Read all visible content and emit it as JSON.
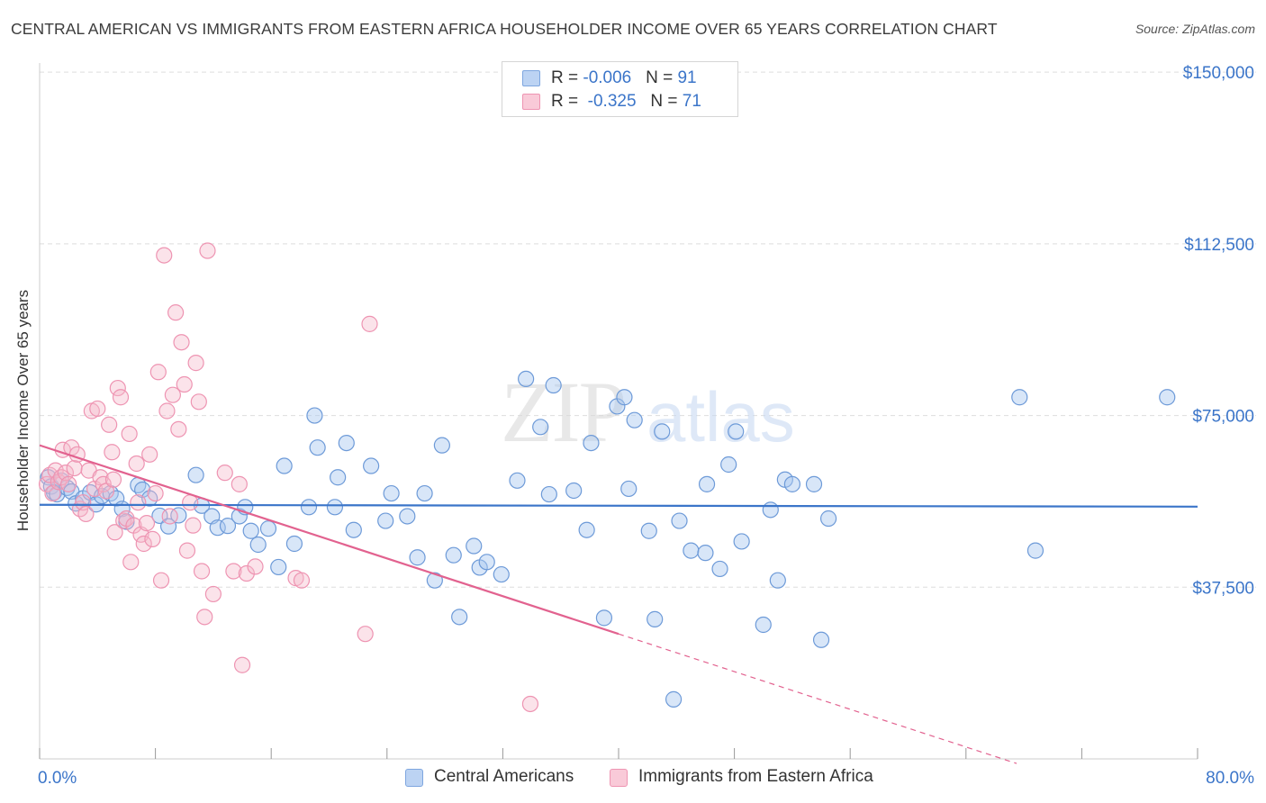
{
  "title": "CENTRAL AMERICAN VS IMMIGRANTS FROM EASTERN AFRICA HOUSEHOLDER INCOME OVER 65 YEARS CORRELATION CHART",
  "source": "Source: ZipAtlas.com",
  "watermark": "ZIPatlas",
  "legend": {
    "row1": {
      "r_label": "R = ",
      "r_value": "-0.006",
      "n_label": "N = ",
      "n_value": "91"
    },
    "row2": {
      "r_label": "R = ",
      "r_value": "-0.325",
      "n_label": "N = ",
      "n_value": "71"
    }
  },
  "colors": {
    "blue": "#3b75c9",
    "blue_fill": "#a9c7f0",
    "pink": "#e2628f",
    "pink_fill": "#f6b8cb",
    "grid": "#dddddd"
  },
  "chart_data": {
    "type": "scatter",
    "title": "CENTRAL AMERICAN VS IMMIGRANTS FROM EASTERN AFRICA HOUSEHOLDER INCOME OVER 65 YEARS CORRELATION CHART",
    "xlabel": "",
    "ylabel": "Householder Income Over 65 years",
    "xlim": [
      0,
      80
    ],
    "ylim": [
      0,
      152000
    ],
    "x_tick_labels": [
      "0.0%",
      "80.0%"
    ],
    "y_ticks": [
      37500,
      75000,
      112500,
      150000
    ],
    "y_tick_labels": [
      "$37,500",
      "$75,000",
      "$112,500",
      "$150,000"
    ],
    "grid": "horizontal dashed",
    "legend_position": "top-center",
    "series": [
      {
        "name": "Central Americans",
        "color": "#3b75c9",
        "r": -0.006,
        "n": 91,
        "trend": {
          "x": [
            0,
            80
          ],
          "y": [
            55500,
            55100
          ]
        },
        "points": [
          [
            0.6,
            61500
          ],
          [
            0.8,
            59500
          ],
          [
            1.0,
            58200
          ],
          [
            1.2,
            57800
          ],
          [
            1.5,
            60800
          ],
          [
            1.9,
            59200
          ],
          [
            2.2,
            58400
          ],
          [
            2.5,
            55800
          ],
          [
            3.0,
            56900
          ],
          [
            3.5,
            58200
          ],
          [
            3.9,
            55600
          ],
          [
            4.3,
            57400
          ],
          [
            4.9,
            58000
          ],
          [
            5.3,
            56900
          ],
          [
            5.7,
            54600
          ],
          [
            6.0,
            51800
          ],
          [
            6.8,
            59800
          ],
          [
            7.1,
            58800
          ],
          [
            7.6,
            56900
          ],
          [
            8.3,
            53100
          ],
          [
            8.9,
            50800
          ],
          [
            9.6,
            53200
          ],
          [
            10.8,
            62000
          ],
          [
            11.2,
            55300
          ],
          [
            11.9,
            53000
          ],
          [
            12.3,
            50500
          ],
          [
            13.0,
            50900
          ],
          [
            13.8,
            53000
          ],
          [
            14.6,
            49800
          ],
          [
            14.2,
            55000
          ],
          [
            15.1,
            46800
          ],
          [
            15.8,
            50300
          ],
          [
            16.9,
            64000
          ],
          [
            16.5,
            41900
          ],
          [
            17.6,
            47000
          ],
          [
            18.6,
            55000
          ],
          [
            19.2,
            68000
          ],
          [
            19.0,
            75000
          ],
          [
            20.6,
            61500
          ],
          [
            20.4,
            55000
          ],
          [
            21.7,
            50000
          ],
          [
            21.2,
            69000
          ],
          [
            22.9,
            64000
          ],
          [
            23.9,
            52000
          ],
          [
            24.3,
            58000
          ],
          [
            25.4,
            53000
          ],
          [
            26.1,
            44000
          ],
          [
            26.6,
            58000
          ],
          [
            27.3,
            39000
          ],
          [
            27.8,
            68500
          ],
          [
            28.6,
            44500
          ],
          [
            29.0,
            31000
          ],
          [
            30.0,
            46500
          ],
          [
            30.4,
            41800
          ],
          [
            30.9,
            43000
          ],
          [
            31.9,
            40300
          ],
          [
            33.0,
            60800
          ],
          [
            33.6,
            83000
          ],
          [
            34.6,
            72500
          ],
          [
            35.2,
            57800
          ],
          [
            35.5,
            81600
          ],
          [
            36.9,
            58600
          ],
          [
            37.8,
            50000
          ],
          [
            38.1,
            69000
          ],
          [
            39.0,
            30800
          ],
          [
            39.9,
            77000
          ],
          [
            40.4,
            79000
          ],
          [
            40.7,
            59000
          ],
          [
            41.1,
            74000
          ],
          [
            42.1,
            49800
          ],
          [
            42.5,
            30500
          ],
          [
            43.0,
            71500
          ],
          [
            44.2,
            52000
          ],
          [
            45.0,
            45500
          ],
          [
            46.1,
            60000
          ],
          [
            46.0,
            45000
          ],
          [
            47.0,
            41500
          ],
          [
            47.6,
            64300
          ],
          [
            48.1,
            71500
          ],
          [
            48.5,
            47500
          ],
          [
            50.0,
            29300
          ],
          [
            50.5,
            54400
          ],
          [
            51.0,
            39000
          ],
          [
            51.5,
            61000
          ],
          [
            43.8,
            13000
          ],
          [
            52.0,
            60000
          ],
          [
            53.5,
            60000
          ],
          [
            54.0,
            26000
          ],
          [
            54.5,
            52500
          ],
          [
            67.7,
            79000
          ],
          [
            68.8,
            45500
          ],
          [
            77.9,
            79000
          ]
        ]
      },
      {
        "name": "Immigrants from Eastern Africa",
        "color": "#e2628f",
        "r": -0.325,
        "n": 71,
        "trend": {
          "x": [
            0,
            40
          ],
          "y": [
            68500,
            27300
          ]
        },
        "trend_dashed": {
          "x": [
            40,
            67.5
          ],
          "y": [
            27300,
            -1000
          ]
        },
        "points": [
          [
            0.5,
            60000
          ],
          [
            0.7,
            62000
          ],
          [
            0.9,
            58000
          ],
          [
            1.1,
            63000
          ],
          [
            1.3,
            60500
          ],
          [
            1.5,
            61500
          ],
          [
            1.6,
            67500
          ],
          [
            1.8,
            62500
          ],
          [
            2.0,
            60000
          ],
          [
            2.2,
            68000
          ],
          [
            2.4,
            63500
          ],
          [
            2.6,
            66500
          ],
          [
            2.8,
            54600
          ],
          [
            3.0,
            56000
          ],
          [
            3.2,
            53500
          ],
          [
            3.4,
            63000
          ],
          [
            3.6,
            76000
          ],
          [
            3.8,
            59000
          ],
          [
            4.0,
            76500
          ],
          [
            4.2,
            61500
          ],
          [
            4.4,
            60000
          ],
          [
            4.6,
            58500
          ],
          [
            4.8,
            73000
          ],
          [
            5.0,
            67000
          ],
          [
            5.1,
            61000
          ],
          [
            5.2,
            49500
          ],
          [
            5.4,
            81000
          ],
          [
            5.6,
            79000
          ],
          [
            5.8,
            52000
          ],
          [
            6.0,
            52500
          ],
          [
            6.2,
            71000
          ],
          [
            6.3,
            43000
          ],
          [
            6.5,
            51000
          ],
          [
            6.7,
            64500
          ],
          [
            6.8,
            56000
          ],
          [
            7.0,
            49000
          ],
          [
            7.2,
            47000
          ],
          [
            7.4,
            51500
          ],
          [
            7.6,
            66500
          ],
          [
            7.8,
            48000
          ],
          [
            8.0,
            58000
          ],
          [
            8.2,
            84500
          ],
          [
            8.4,
            39000
          ],
          [
            8.6,
            110000
          ],
          [
            8.8,
            76000
          ],
          [
            9.0,
            53000
          ],
          [
            9.2,
            79500
          ],
          [
            9.4,
            97500
          ],
          [
            9.6,
            72000
          ],
          [
            9.8,
            91000
          ],
          [
            10.0,
            81800
          ],
          [
            10.2,
            45500
          ],
          [
            10.4,
            56000
          ],
          [
            10.6,
            51000
          ],
          [
            10.8,
            86500
          ],
          [
            11.0,
            78000
          ],
          [
            11.2,
            41000
          ],
          [
            11.4,
            31000
          ],
          [
            11.6,
            111000
          ],
          [
            12.0,
            36000
          ],
          [
            12.8,
            62500
          ],
          [
            13.4,
            41000
          ],
          [
            14.0,
            20500
          ],
          [
            14.3,
            40500
          ],
          [
            14.9,
            42000
          ],
          [
            17.7,
            39500
          ],
          [
            18.1,
            39000
          ],
          [
            22.8,
            95000
          ],
          [
            22.5,
            27300
          ],
          [
            33.9,
            12000
          ],
          [
            13.8,
            60000
          ]
        ]
      }
    ]
  }
}
